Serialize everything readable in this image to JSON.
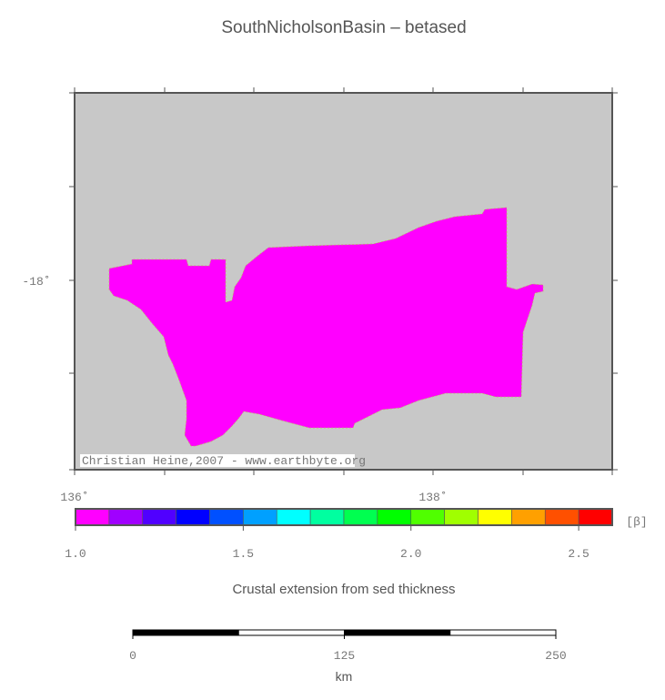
{
  "title": "SouthNicholsonBasin – betased",
  "map": {
    "lon_labels": [
      "136˚",
      "138˚"
    ],
    "lat_labels": [
      "-18˚"
    ],
    "credit": "Christian Heine,2007 - www.earthbyte.org"
  },
  "colorbar": {
    "bins": [
      1.0,
      1.1,
      1.2,
      1.3,
      1.4,
      1.5,
      1.6,
      1.7,
      1.8,
      1.9,
      2.0,
      2.1,
      2.2,
      2.3,
      2.4,
      2.5,
      2.6
    ],
    "colors": [
      "#ff00ff",
      "#a000ff",
      "#5000ff",
      "#0000ff",
      "#0050ff",
      "#00a0ff",
      "#00ffff",
      "#00ffa0",
      "#00ff50",
      "#00ff00",
      "#50ff00",
      "#a0ff00",
      "#ffff00",
      "#ffa000",
      "#ff5000",
      "#ff0000"
    ],
    "lim": [
      1.0,
      2.6
    ],
    "ticks": [
      {
        "value": 1.0,
        "label": "1.0"
      },
      {
        "value": 1.5,
        "label": "1.5"
      },
      {
        "value": 2.0,
        "label": "2.0"
      },
      {
        "value": 2.5,
        "label": "2.5"
      }
    ],
    "unit": "[β]",
    "label": "Crustal extension from sed thickness"
  },
  "scalebar": {
    "lim": [
      0,
      250
    ],
    "ticks": [
      0,
      125,
      250
    ],
    "unit": "km"
  }
}
